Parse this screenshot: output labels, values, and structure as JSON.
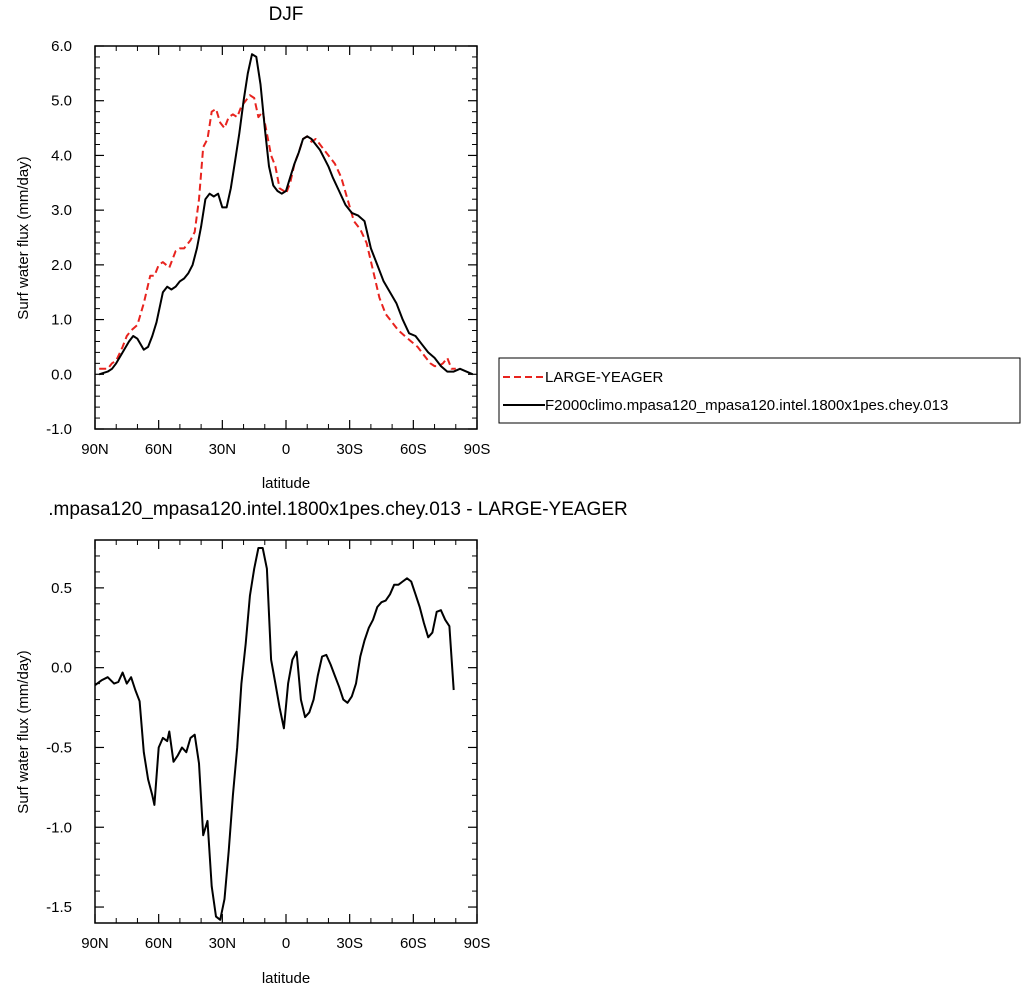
{
  "chart_data": [
    {
      "type": "line",
      "title": "DJF",
      "xlabel": "latitude",
      "ylabel": "Surf water flux (mm/day)",
      "xlim": [
        90,
        -90
      ],
      "ylim": [
        -1.0,
        6.0
      ],
      "x_ticks": [
        90,
        60,
        30,
        0,
        -30,
        -60,
        -90
      ],
      "x_tick_labels": [
        "90N",
        "60N",
        "30N",
        "0",
        "30S",
        "60S",
        "90S"
      ],
      "y_ticks": [
        -1.0,
        0.0,
        1.0,
        2.0,
        3.0,
        4.0,
        5.0,
        6.0
      ],
      "y_tick_labels": [
        "-1.0",
        "0.0",
        "1.0",
        "2.0",
        "3.0",
        "4.0",
        "5.0",
        "6.0"
      ],
      "legend_position": "right",
      "series": [
        {
          "name": "LARGE-YEAGER",
          "color": "#e8231e",
          "dash": "dashed",
          "x": [
            88,
            84,
            82,
            80,
            77,
            75,
            73,
            70,
            67,
            64,
            62,
            60,
            58,
            55,
            52,
            50,
            48,
            45,
            43,
            41,
            39,
            37,
            35,
            33,
            31,
            29,
            27,
            25,
            23,
            21,
            19,
            17,
            15,
            13,
            11,
            9,
            7,
            5,
            3,
            1,
            0,
            -2,
            -4,
            -6,
            -8,
            -10,
            -12,
            -14,
            -16,
            -18,
            -20,
            -23,
            -26,
            -29,
            -32,
            -35,
            -38,
            -41,
            -44,
            -47,
            -50,
            -53,
            -56,
            -59,
            -62,
            -65,
            -68,
            -70,
            -72,
            -74,
            -76,
            -78,
            -80
          ],
          "values": [
            0.1,
            0.1,
            0.2,
            0.25,
            0.5,
            0.7,
            0.8,
            0.9,
            1.3,
            1.8,
            1.8,
            2.0,
            2.05,
            1.95,
            2.25,
            2.3,
            2.3,
            2.45,
            2.6,
            3.2,
            4.15,
            4.3,
            4.8,
            4.85,
            4.6,
            4.5,
            4.7,
            4.75,
            4.7,
            4.9,
            5.0,
            5.1,
            5.05,
            4.7,
            4.8,
            4.4,
            4.0,
            3.8,
            3.4,
            3.35,
            3.3,
            3.5,
            3.85,
            4.05,
            4.3,
            4.35,
            4.25,
            4.3,
            4.2,
            4.1,
            4.0,
            3.85,
            3.6,
            3.2,
            2.8,
            2.65,
            2.4,
            1.9,
            1.4,
            1.1,
            0.95,
            0.8,
            0.7,
            0.6,
            0.5,
            0.35,
            0.2,
            0.15,
            0.15,
            0.2,
            0.3,
            0.1,
            0.1
          ]
        },
        {
          "name": "F2000climo.mpasa120_mpasa120.intel.1800x1pes.chey.013",
          "color": "#000000",
          "dash": "solid",
          "x": [
            88,
            84,
            82,
            80,
            77,
            74,
            72,
            70,
            67,
            65,
            63,
            61,
            58,
            56,
            54,
            52,
            50,
            48,
            46,
            44,
            42,
            40,
            38,
            36,
            34,
            32,
            30,
            28,
            26,
            24,
            22,
            20,
            18,
            16,
            14,
            12,
            10,
            8,
            6,
            4,
            2,
            0,
            -2,
            -4,
            -6,
            -8,
            -10,
            -12,
            -14,
            -16,
            -18,
            -20,
            -22,
            -25,
            -28,
            -31,
            -34,
            -37,
            -40,
            -43,
            -46,
            -49,
            -52,
            -55,
            -58,
            -61,
            -64,
            -67,
            -70,
            -73,
            -76,
            -79,
            -82,
            -85,
            -88
          ],
          "values": [
            0.0,
            0.05,
            0.1,
            0.2,
            0.4,
            0.6,
            0.7,
            0.65,
            0.45,
            0.5,
            0.7,
            0.95,
            1.5,
            1.6,
            1.55,
            1.6,
            1.7,
            1.75,
            1.85,
            2.0,
            2.3,
            2.7,
            3.2,
            3.3,
            3.25,
            3.3,
            3.05,
            3.05,
            3.4,
            3.9,
            4.4,
            5.0,
            5.5,
            5.85,
            5.8,
            5.3,
            4.5,
            3.8,
            3.45,
            3.35,
            3.3,
            3.35,
            3.6,
            3.85,
            4.05,
            4.3,
            4.35,
            4.3,
            4.2,
            4.1,
            3.95,
            3.8,
            3.6,
            3.35,
            3.1,
            2.95,
            2.9,
            2.8,
            2.3,
            2.0,
            1.7,
            1.5,
            1.3,
            1.0,
            0.75,
            0.7,
            0.55,
            0.4,
            0.3,
            0.15,
            0.05,
            0.05,
            0.1,
            0.05,
            0.0
          ]
        }
      ]
    },
    {
      "type": "line",
      "title": ".mpasa120_mpasa120.intel.1800x1pes.chey.013 - LARGE-YEAGER",
      "xlabel": "latitude",
      "ylabel": "Surf water flux (mm/day)",
      "xlim": [
        90,
        -90
      ],
      "ylim": [
        -1.6,
        0.8
      ],
      "x_ticks": [
        90,
        60,
        30,
        0,
        -30,
        -60,
        -90
      ],
      "x_tick_labels": [
        "90N",
        "60N",
        "30N",
        "0",
        "30S",
        "60S",
        "90S"
      ],
      "y_ticks": [
        -1.5,
        -1.0,
        -0.5,
        0.0,
        0.5
      ],
      "y_tick_labels": [
        "-1.5",
        "-1.0",
        "-0.5",
        "0.0",
        "0.5"
      ],
      "series": [
        {
          "color": "#000000",
          "dash": "solid",
          "x": [
            90,
            87,
            84,
            81,
            79,
            77,
            75,
            73,
            71,
            69,
            67,
            65,
            63,
            62,
            60,
            58,
            56,
            55,
            53,
            51,
            49,
            47,
            45,
            43,
            41,
            39,
            37,
            35,
            33,
            31,
            29,
            27,
            25,
            23,
            21,
            19,
            17,
            15,
            13,
            11,
            9,
            7,
            5,
            3,
            1,
            -1,
            -3,
            -5,
            -7,
            -9,
            -11,
            -13,
            -15,
            -17,
            -19,
            -21,
            -23,
            -25,
            -27,
            -29,
            -31,
            -33,
            -35,
            -37,
            -39,
            -41,
            -43,
            -45,
            -47,
            -49,
            -51,
            -53,
            -55,
            -57,
            -59,
            -61,
            -63,
            -65,
            -67,
            -69,
            -71,
            -73,
            -75,
            -77,
            -79
          ],
          "values": [
            -0.11,
            -0.08,
            -0.06,
            -0.1,
            -0.09,
            -0.03,
            -0.1,
            -0.06,
            -0.14,
            -0.21,
            -0.53,
            -0.7,
            -0.8,
            -0.86,
            -0.5,
            -0.44,
            -0.46,
            -0.4,
            -0.59,
            -0.55,
            -0.5,
            -0.53,
            -0.44,
            -0.42,
            -0.6,
            -1.05,
            -0.96,
            -1.37,
            -1.56,
            -1.58,
            -1.45,
            -1.15,
            -0.8,
            -0.5,
            -0.1,
            0.15,
            0.45,
            0.62,
            0.75,
            0.75,
            0.62,
            0.05,
            -0.1,
            -0.25,
            -0.38,
            -0.1,
            0.05,
            0.1,
            -0.2,
            -0.31,
            -0.28,
            -0.2,
            -0.05,
            0.07,
            0.08,
            0.02,
            -0.05,
            -0.12,
            -0.2,
            -0.22,
            -0.18,
            -0.1,
            0.07,
            0.17,
            0.25,
            0.3,
            0.38,
            0.41,
            0.42,
            0.46,
            0.52,
            0.52,
            0.54,
            0.56,
            0.54,
            0.46,
            0.38,
            0.28,
            0.19,
            0.22,
            0.35,
            0.36,
            0.3,
            0.26,
            -0.14
          ]
        }
      ]
    }
  ]
}
